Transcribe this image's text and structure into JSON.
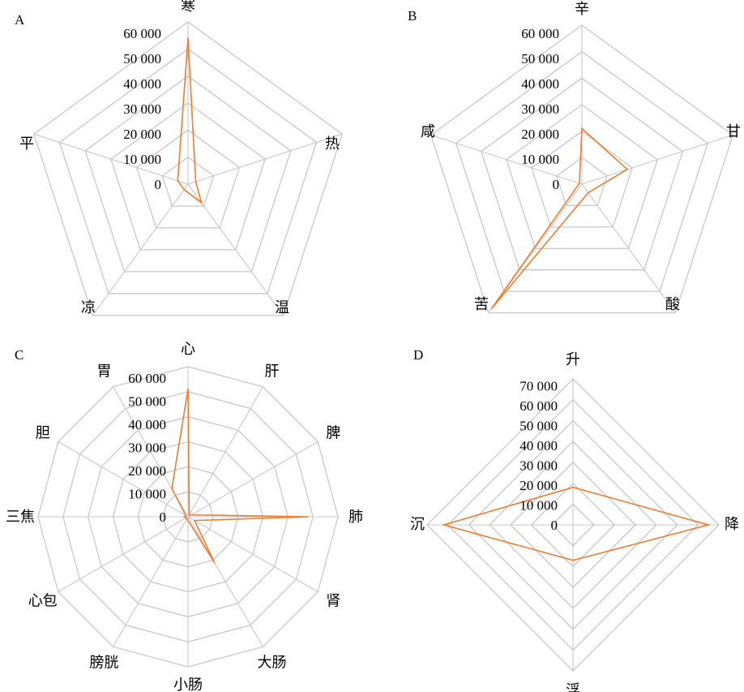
{
  "chart_data": [
    {
      "type": "radar",
      "panel": "A",
      "categories": [
        "寒",
        "热",
        "温",
        "凉",
        "平"
      ],
      "tick_labels": [
        "60 000",
        "50 000",
        "40 000",
        "30 000",
        "20 000",
        "10 000",
        "0"
      ],
      "ylim": [
        0,
        60000
      ],
      "series": [
        {
          "values": [
            54000,
            3000,
            8500,
            2500,
            4000
          ]
        }
      ],
      "color": "#ED7D31"
    },
    {
      "type": "radar",
      "panel": "B",
      "categories": [
        "辛",
        "甘",
        "酸",
        "苦",
        "咸"
      ],
      "tick_labels": [
        "60 000",
        "50 000",
        "40 000",
        "30 000",
        "20 000",
        "10 000",
        "0"
      ],
      "ylim": [
        0,
        60000
      ],
      "series": [
        {
          "values": [
            21000,
            18000,
            4000,
            58000,
            1000
          ]
        }
      ],
      "color": "#ED7D31"
    },
    {
      "type": "radar",
      "panel": "C",
      "categories": [
        "心",
        "肝",
        "脾",
        "肺",
        "肾",
        "大肠",
        "小肠",
        "膀胱",
        "心包",
        "三焦",
        "胆",
        "胃"
      ],
      "tick_labels": [
        "60 000",
        "50 000",
        "40 000",
        "30 000",
        "20 000",
        "10 000",
        "0"
      ],
      "ylim": [
        0,
        60000
      ],
      "series": [
        {
          "values": [
            51000,
            1000,
            1500,
            48000,
            3000,
            21000,
            1500,
            1000,
            1000,
            1500,
            1000,
            13000
          ]
        }
      ],
      "color": "#ED7D31"
    },
    {
      "type": "radar",
      "panel": "D",
      "categories": [
        "升",
        "降",
        "浮",
        "沉"
      ],
      "tick_labels": [
        "70 000",
        "60 000",
        "50 000",
        "40 000",
        "30 000",
        "20 000",
        "10 000",
        "0"
      ],
      "ylim": [
        0,
        70000
      ],
      "series": [
        {
          "values": [
            18000,
            65000,
            17000,
            62000
          ]
        }
      ],
      "color": "#ED7D31"
    }
  ]
}
